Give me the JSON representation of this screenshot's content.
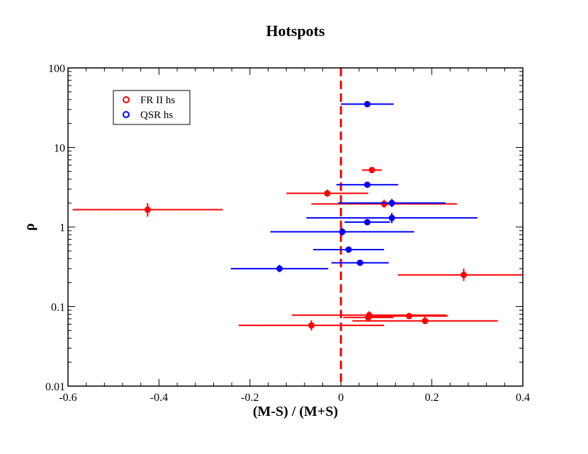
{
  "chart_data": {
    "type": "scatter",
    "title": "Hotspots",
    "xlabel": "(M-S) / (M+S)",
    "ylabel": "ρ",
    "xlim": [
      -0.6,
      0.4
    ],
    "ylim": [
      0.01,
      100
    ],
    "yscale": "log",
    "x_ticks": [
      {
        "value": -0.6,
        "label": "-0.6"
      },
      {
        "value": -0.4,
        "label": "-0.4"
      },
      {
        "value": -0.2,
        "label": "-0.2"
      },
      {
        "value": 0,
        "label": "0"
      },
      {
        "value": 0.2,
        "label": "0.2"
      },
      {
        "value": 0.4,
        "label": "0.4"
      }
    ],
    "y_ticks": [
      {
        "value": 0.01,
        "label": "0.01"
      },
      {
        "value": 0.1,
        "label": "0.1"
      },
      {
        "value": 1,
        "label": "1"
      },
      {
        "value": 10,
        "label": "10"
      },
      {
        "value": 100,
        "label": "100"
      }
    ],
    "reference_line": {
      "x": 0,
      "color": "#ff0000",
      "style": "dashed"
    },
    "legend": {
      "position": "top-left"
    },
    "series": [
      {
        "name": "FR II hs",
        "color": "#ff0000",
        "points": [
          {
            "x": -0.425,
            "y": 1.65,
            "xerr": 0.165,
            "ylo": 1.35,
            "yhi": 2.0
          },
          {
            "x": -0.03,
            "y": 2.65,
            "xerr": 0.09,
            "ylo": 2.4,
            "yhi": 2.95
          },
          {
            "x": 0.068,
            "y": 5.2,
            "xerr": 0.022,
            "ylo": 5.0,
            "yhi": 5.45
          },
          {
            "x": 0.095,
            "y": 1.95,
            "xerr": 0.16,
            "ylo": 1.75,
            "yhi": 2.2
          },
          {
            "x": 0.27,
            "y": 0.25,
            "xerr": 0.145,
            "ylo": 0.21,
            "yhi": 0.3
          },
          {
            "x": 0.062,
            "y": 0.078,
            "xerr": 0.17,
            "ylo": 0.07,
            "yhi": 0.087
          },
          {
            "x": 0.06,
            "y": 0.073,
            "xerr": 0.055,
            "ylo": 0.066,
            "yhi": 0.081
          },
          {
            "x": 0.15,
            "y": 0.076,
            "xerr": 0.085,
            "ylo": 0.071,
            "yhi": 0.082
          },
          {
            "x": 0.185,
            "y": 0.066,
            "xerr": 0.16,
            "ylo": 0.06,
            "yhi": 0.074
          },
          {
            "x": -0.065,
            "y": 0.058,
            "xerr": 0.16,
            "ylo": 0.05,
            "yhi": 0.067
          }
        ]
      },
      {
        "name": "QSR hs",
        "color": "#0000ff",
        "points": [
          {
            "x": 0.058,
            "y": 35.0,
            "xerr": 0.058,
            "ylo": 32.5,
            "yhi": 37.5
          },
          {
            "x": 0.058,
            "y": 3.4,
            "xerr": 0.068,
            "ylo": 3.15,
            "yhi": 3.65
          },
          {
            "x": 0.112,
            "y": 2.0,
            "xerr": 0.118,
            "ylo": 1.78,
            "yhi": 2.25
          },
          {
            "x": 0.112,
            "y": 1.3,
            "xerr": 0.188,
            "ylo": 1.12,
            "yhi": 1.5
          },
          {
            "x": 0.058,
            "y": 1.15,
            "xerr": 0.05,
            "ylo": 1.07,
            "yhi": 1.24
          },
          {
            "x": 0.003,
            "y": 0.87,
            "xerr": 0.158,
            "ylo": 0.78,
            "yhi": 0.97
          },
          {
            "x": 0.017,
            "y": 0.52,
            "xerr": 0.078,
            "ylo": 0.48,
            "yhi": 0.57
          },
          {
            "x": 0.042,
            "y": 0.355,
            "xerr": 0.063,
            "ylo": 0.33,
            "yhi": 0.385
          },
          {
            "x": -0.135,
            "y": 0.3,
            "xerr": 0.107,
            "ylo": 0.27,
            "yhi": 0.335
          }
        ]
      }
    ]
  }
}
